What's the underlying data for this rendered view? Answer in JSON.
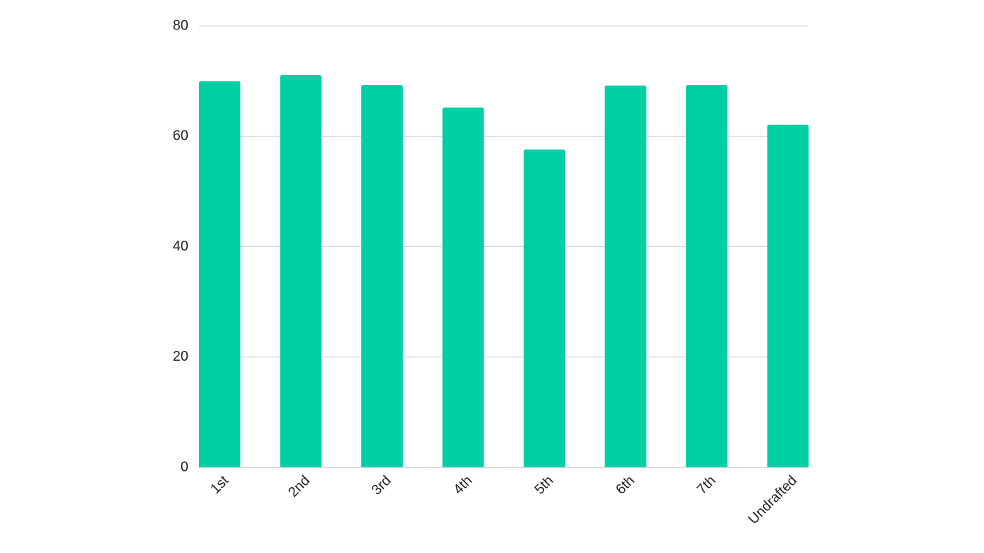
{
  "chart_data": {
    "type": "bar",
    "categories": [
      "1st",
      "2nd",
      "3rd",
      "4th",
      "5th",
      "6th",
      "7th",
      "Undrafted"
    ],
    "values": [
      70,
      71.1,
      69.3,
      65.2,
      57.6,
      69.2,
      69.3,
      62.1
    ],
    "color": "#00cea5",
    "ylim": [
      0,
      80
    ],
    "yticks": [
      0,
      20,
      40,
      60,
      80
    ],
    "grid": true
  }
}
